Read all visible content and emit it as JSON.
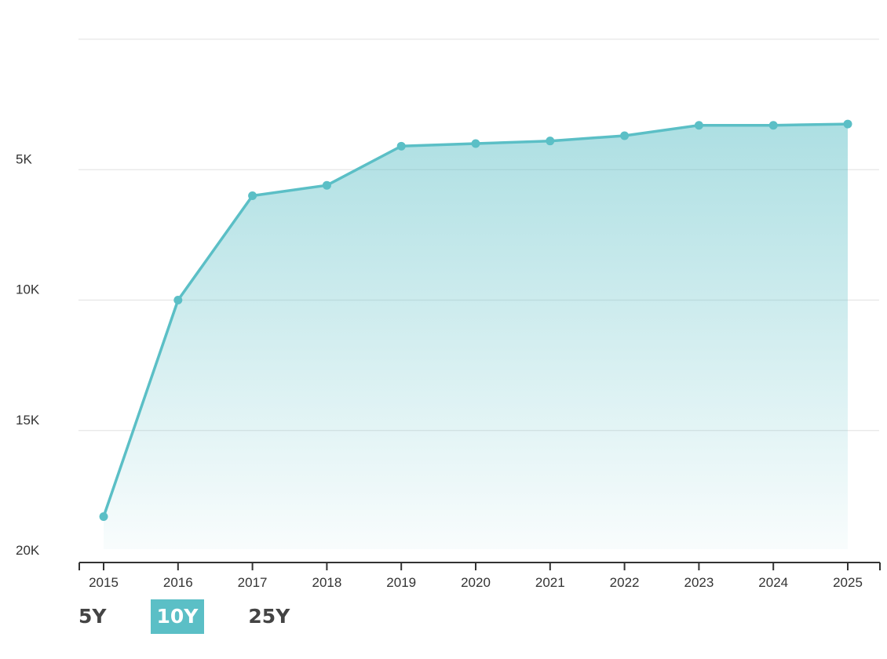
{
  "chart_data": {
    "type": "area",
    "title": "",
    "xlabel": "",
    "ylabel": "",
    "y_axis_inverted": true,
    "ylim": [
      0,
      20000
    ],
    "y_ticks": [
      {
        "value": 5000,
        "label": "5K"
      },
      {
        "value": 10000,
        "label": "10K"
      },
      {
        "value": 15000,
        "label": "15K"
      },
      {
        "value": 20000,
        "label": "20K"
      }
    ],
    "categories": [
      "2015",
      "2016",
      "2017",
      "2018",
      "2019",
      "2020",
      "2021",
      "2022",
      "2023",
      "2024",
      "2025"
    ],
    "series": [
      {
        "values": [
          18300,
          10000,
          6000,
          5600,
          4100,
          4000,
          3900,
          3700,
          3300,
          3300,
          3250
        ],
        "color": "#5bbfc6"
      }
    ],
    "grid": true,
    "legend": "none"
  },
  "range_selector": {
    "options": [
      "5Y",
      "10Y",
      "25Y"
    ],
    "selected": "10Y",
    "active_color": "#5bbfc6"
  }
}
